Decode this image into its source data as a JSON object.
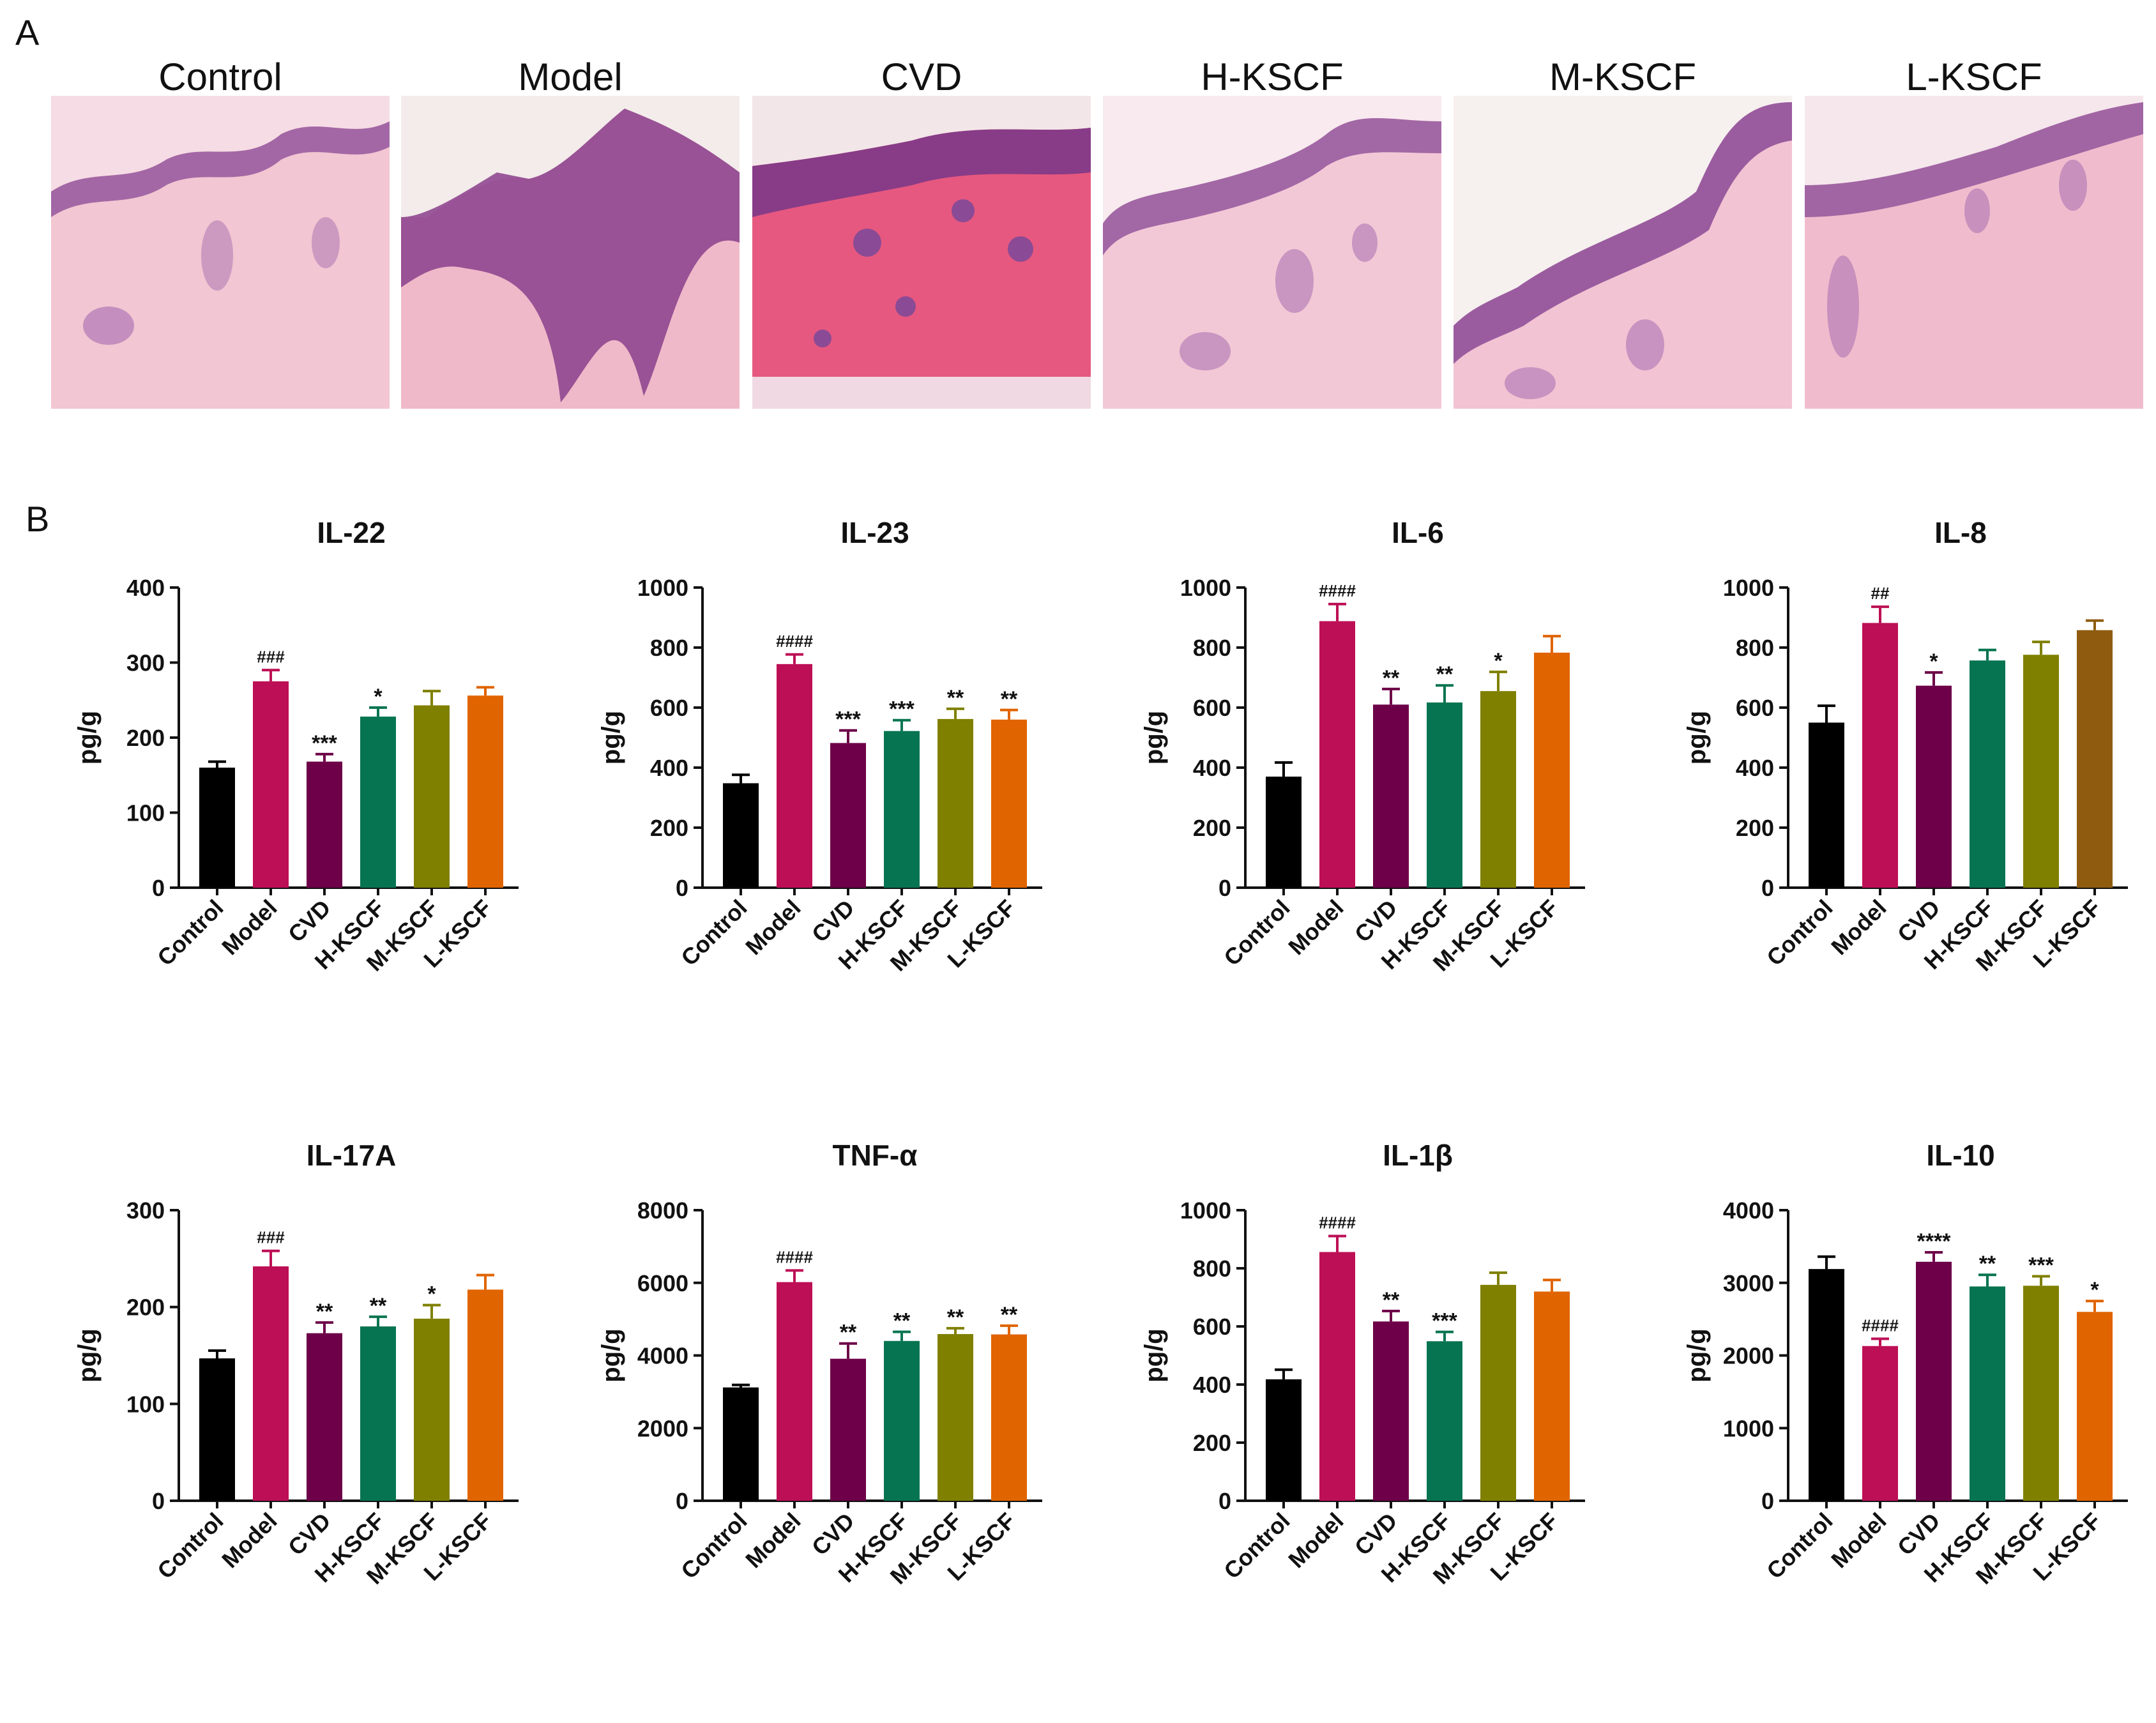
{
  "panels": {
    "a": "A",
    "b": "B"
  },
  "histology": {
    "labels": [
      "Control",
      "Model",
      "CVD",
      "H-KSCF",
      "M-KSCF",
      "L-KSCF"
    ]
  },
  "colors": {
    "Control": "#000000",
    "Model": "#bd0f55",
    "CVD": "#6d0048",
    "H-KSCF": "#067451",
    "M-KSCF": "#7f8000",
    "L-KSCF": "#e06400",
    "L-KSCF-IL8": "#8f5c0f"
  },
  "chart_data": [
    {
      "type": "bar",
      "title": "IL-22",
      "ylabel": "pg/g",
      "categories": [
        "Control",
        "Model",
        "CVD",
        "H-KSCF",
        "M-KSCF",
        "L-KSCF"
      ],
      "values": [
        160,
        275,
        168,
        228,
        243,
        256
      ],
      "errors": [
        8,
        15,
        10,
        12,
        19,
        11
      ],
      "annotations": [
        "",
        "###",
        "***",
        "*",
        "",
        ""
      ],
      "ylim": [
        0,
        400
      ],
      "yticks": [
        0,
        100,
        200,
        300,
        400
      ]
    },
    {
      "type": "bar",
      "title": "IL-23",
      "ylabel": "pg/g",
      "categories": [
        "Control",
        "Model",
        "CVD",
        "H-KSCF",
        "M-KSCF",
        "L-KSCF"
      ],
      "values": [
        348,
        745,
        482,
        522,
        562,
        560
      ],
      "errors": [
        28,
        32,
        42,
        36,
        34,
        32
      ],
      "annotations": [
        "",
        "####",
        "***",
        "***",
        "**",
        "**"
      ],
      "ylim": [
        0,
        1000
      ],
      "yticks": [
        0,
        200,
        400,
        600,
        800,
        1000
      ]
    },
    {
      "type": "bar",
      "title": "IL-6",
      "ylabel": "pg/g",
      "categories": [
        "Control",
        "Model",
        "CVD",
        "H-KSCF",
        "M-KSCF",
        "L-KSCF"
      ],
      "values": [
        370,
        888,
        610,
        617,
        655,
        783
      ],
      "errors": [
        47,
        57,
        52,
        57,
        64,
        55
      ],
      "annotations": [
        "",
        "####",
        "**",
        "**",
        "*",
        ""
      ],
      "ylim": [
        0,
        1000
      ],
      "yticks": [
        0,
        200,
        400,
        600,
        800,
        1000
      ]
    },
    {
      "type": "bar",
      "title": "IL-8",
      "ylabel": "pg/g",
      "categories": [
        "Control",
        "Model",
        "CVD",
        "H-KSCF",
        "M-KSCF",
        "L-KSCF"
      ],
      "values": [
        550,
        882,
        673,
        757,
        776,
        858
      ],
      "errors": [
        56,
        54,
        44,
        35,
        43,
        32
      ],
      "annotations": [
        "",
        "##",
        "*",
        "",
        "",
        ""
      ],
      "ylim": [
        0,
        1000
      ],
      "yticks": [
        0,
        200,
        400,
        600,
        800,
        1000
      ]
    },
    {
      "type": "bar",
      "title": "IL-17A",
      "ylabel": "pg/g",
      "categories": [
        "Control",
        "Model",
        "CVD",
        "H-KSCF",
        "M-KSCF",
        "L-KSCF"
      ],
      "values": [
        147,
        242,
        173,
        180,
        188,
        218
      ],
      "errors": [
        8,
        16,
        11,
        10,
        14,
        15
      ],
      "annotations": [
        "",
        "###",
        "**",
        "**",
        "*",
        ""
      ],
      "ylim": [
        0,
        300
      ],
      "yticks": [
        0,
        100,
        200,
        300
      ]
    },
    {
      "type": "bar",
      "title": "TNF-α",
      "ylabel": "pg/g",
      "categories": [
        "Control",
        "Model",
        "CVD",
        "H-KSCF",
        "M-KSCF",
        "L-KSCF"
      ],
      "values": [
        3120,
        6020,
        3910,
        4400,
        4590,
        4580
      ],
      "errors": [
        70,
        320,
        420,
        250,
        160,
        240
      ],
      "annotations": [
        "",
        "####",
        "**",
        "**",
        "**",
        "**"
      ],
      "ylim": [
        0,
        8000
      ],
      "yticks": [
        0,
        2000,
        4000,
        6000,
        8000
      ]
    },
    {
      "type": "bar",
      "title": "IL-1β",
      "ylabel": "pg/g",
      "categories": [
        "Control",
        "Model",
        "CVD",
        "H-KSCF",
        "M-KSCF",
        "L-KSCF"
      ],
      "values": [
        418,
        856,
        617,
        549,
        743,
        720
      ],
      "errors": [
        33,
        55,
        36,
        32,
        42,
        40
      ],
      "annotations": [
        "",
        "####",
        "**",
        "***",
        "",
        ""
      ],
      "ylim": [
        0,
        1000
      ],
      "yticks": [
        0,
        200,
        400,
        600,
        800,
        1000
      ]
    },
    {
      "type": "bar",
      "title": "IL-10",
      "ylabel": "pg/g",
      "categories": [
        "Control",
        "Model",
        "CVD",
        "H-KSCF",
        "M-KSCF",
        "L-KSCF"
      ],
      "values": [
        3190,
        2130,
        3290,
        2950,
        2960,
        2600
      ],
      "errors": [
        170,
        100,
        130,
        160,
        130,
        150
      ],
      "annotations": [
        "",
        "####",
        "****",
        "**",
        "***",
        "*"
      ],
      "ylim": [
        0,
        4000
      ],
      "yticks": [
        0,
        1000,
        2000,
        3000,
        4000
      ]
    }
  ]
}
